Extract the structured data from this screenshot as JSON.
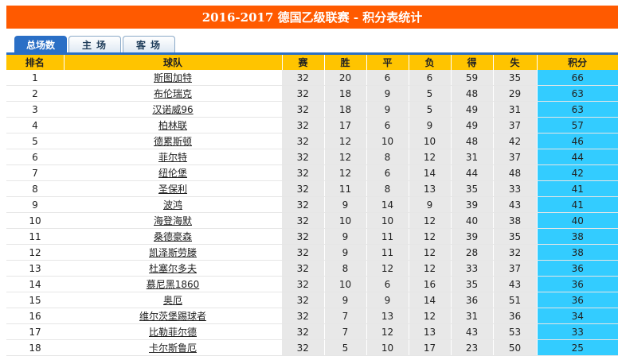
{
  "title": "2016-2017 德国乙级联赛 - 积分表统计",
  "tabs": [
    {
      "label": "总场数",
      "active": true
    },
    {
      "label": "主场",
      "active": false
    },
    {
      "label": "客场",
      "active": false
    }
  ],
  "columns": [
    "排名",
    "球队",
    "赛",
    "胜",
    "平",
    "负",
    "得",
    "失",
    "积分"
  ],
  "rows": [
    [
      "1",
      "斯图加特",
      "32",
      "20",
      "6",
      "6",
      "59",
      "35",
      "66"
    ],
    [
      "2",
      "布伦瑞克",
      "32",
      "18",
      "9",
      "5",
      "48",
      "29",
      "63"
    ],
    [
      "3",
      "汉诺威96",
      "32",
      "18",
      "9",
      "5",
      "49",
      "31",
      "63"
    ],
    [
      "4",
      "柏林联",
      "32",
      "17",
      "6",
      "9",
      "49",
      "37",
      "57"
    ],
    [
      "5",
      "德累斯顿",
      "32",
      "12",
      "10",
      "10",
      "48",
      "42",
      "46"
    ],
    [
      "6",
      "菲尔特",
      "32",
      "12",
      "8",
      "12",
      "31",
      "37",
      "44"
    ],
    [
      "7",
      "纽伦堡",
      "32",
      "12",
      "6",
      "14",
      "44",
      "48",
      "42"
    ],
    [
      "8",
      "圣保利",
      "32",
      "11",
      "8",
      "13",
      "35",
      "33",
      "41"
    ],
    [
      "9",
      "波鸿",
      "32",
      "9",
      "14",
      "9",
      "39",
      "43",
      "41"
    ],
    [
      "10",
      "海登海默",
      "32",
      "10",
      "10",
      "12",
      "40",
      "38",
      "40"
    ],
    [
      "11",
      "桑德豪森",
      "32",
      "9",
      "11",
      "12",
      "39",
      "35",
      "38"
    ],
    [
      "12",
      "凯泽斯劳滕",
      "32",
      "9",
      "11",
      "12",
      "28",
      "32",
      "38"
    ],
    [
      "13",
      "杜塞尔多夫",
      "32",
      "8",
      "12",
      "12",
      "33",
      "37",
      "36"
    ],
    [
      "14",
      "慕尼黑1860",
      "32",
      "10",
      "6",
      "16",
      "35",
      "43",
      "36"
    ],
    [
      "15",
      "奥厄",
      "32",
      "9",
      "9",
      "14",
      "36",
      "51",
      "36"
    ],
    [
      "16",
      "维尔茨堡踢球者",
      "32",
      "7",
      "13",
      "12",
      "31",
      "36",
      "34"
    ],
    [
      "17",
      "比勒菲尔德",
      "32",
      "7",
      "12",
      "13",
      "43",
      "53",
      "33"
    ],
    [
      "18",
      "卡尔斯鲁厄",
      "32",
      "5",
      "10",
      "17",
      "23",
      "50",
      "25"
    ]
  ]
}
